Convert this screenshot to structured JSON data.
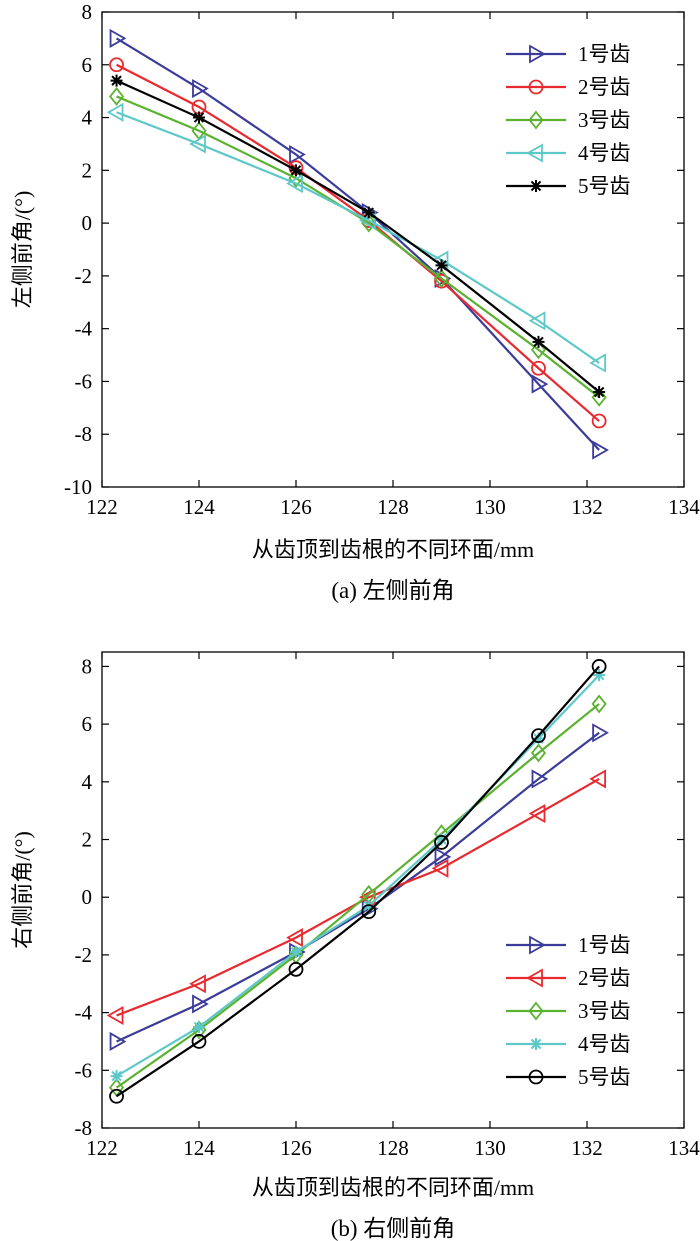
{
  "chart_data": [
    {
      "type": "line",
      "title": "",
      "caption": "(a) 左侧前角",
      "xlabel": "从齿顶到齿根的不同环面/mm",
      "ylabel": "左侧前角/(°)",
      "xlim": [
        122,
        134
      ],
      "ylim": [
        -10,
        8
      ],
      "xticks": [
        122,
        124,
        126,
        128,
        130,
        132,
        134
      ],
      "yticks": [
        -10,
        -8,
        -6,
        -4,
        -2,
        0,
        2,
        4,
        6,
        8
      ],
      "grid": false,
      "legend_position": "top-right",
      "x": [
        122.3,
        124,
        126,
        127.5,
        129,
        131,
        132.25
      ],
      "series": [
        {
          "name": "1号齿",
          "color": "#3b3b9a",
          "marker": "triangle-right",
          "values": [
            7.0,
            5.1,
            2.6,
            0.4,
            -2.1,
            -6.1,
            -8.6
          ]
        },
        {
          "name": "2号齿",
          "color": "#e8292f",
          "marker": "circle",
          "values": [
            6.0,
            4.4,
            2.1,
            0.1,
            -2.2,
            -5.5,
            -7.5
          ]
        },
        {
          "name": "3号齿",
          "color": "#5ab22f",
          "marker": "diamond",
          "values": [
            4.8,
            3.5,
            1.7,
            0.0,
            -2.1,
            -4.8,
            -6.6
          ]
        },
        {
          "name": "4号齿",
          "color": "#5ec8c8",
          "marker": "triangle-left",
          "values": [
            4.2,
            3.0,
            1.5,
            0.1,
            -1.4,
            -3.7,
            -5.3
          ]
        },
        {
          "name": "5号齿",
          "color": "#000000",
          "marker": "star",
          "values": [
            5.4,
            4.0,
            2.0,
            0.4,
            -1.6,
            -4.5,
            -6.4
          ]
        }
      ]
    },
    {
      "type": "line",
      "title": "",
      "caption": "(b) 右侧前角",
      "xlabel": "从齿顶到齿根的不同环面/mm",
      "ylabel": "右侧前角/(°)",
      "xlim": [
        122,
        134
      ],
      "ylim": [
        -8,
        8.5
      ],
      "xticks": [
        122,
        124,
        126,
        128,
        130,
        132,
        134
      ],
      "yticks": [
        -8,
        -6,
        -4,
        -2,
        0,
        2,
        4,
        6,
        8
      ],
      "grid": false,
      "legend_position": "bottom-right",
      "x": [
        122.3,
        124,
        126,
        127.5,
        129,
        131,
        132.25
      ],
      "series": [
        {
          "name": "1号齿",
          "color": "#3b3b9a",
          "marker": "triangle-right",
          "values": [
            -5.0,
            -3.7,
            -1.9,
            -0.4,
            1.4,
            4.1,
            5.7
          ]
        },
        {
          "name": "2号齿",
          "color": "#e8292f",
          "marker": "triangle-left",
          "values": [
            -4.1,
            -3.0,
            -1.4,
            0.0,
            1.0,
            2.9,
            4.1
          ]
        },
        {
          "name": "3号齿",
          "color": "#5ab22f",
          "marker": "diamond",
          "values": [
            -6.6,
            -4.6,
            -2.0,
            0.1,
            2.2,
            5.0,
            6.7
          ]
        },
        {
          "name": "4号齿",
          "color": "#5ec8c8",
          "marker": "asterisk",
          "values": [
            -6.2,
            -4.5,
            -1.9,
            -0.3,
            2.0,
            5.5,
            7.7
          ]
        },
        {
          "name": "5号齿",
          "color": "#000000",
          "marker": "circle",
          "values": [
            -6.9,
            -5.0,
            -2.5,
            -0.5,
            1.9,
            5.6,
            8.0
          ]
        }
      ]
    }
  ]
}
